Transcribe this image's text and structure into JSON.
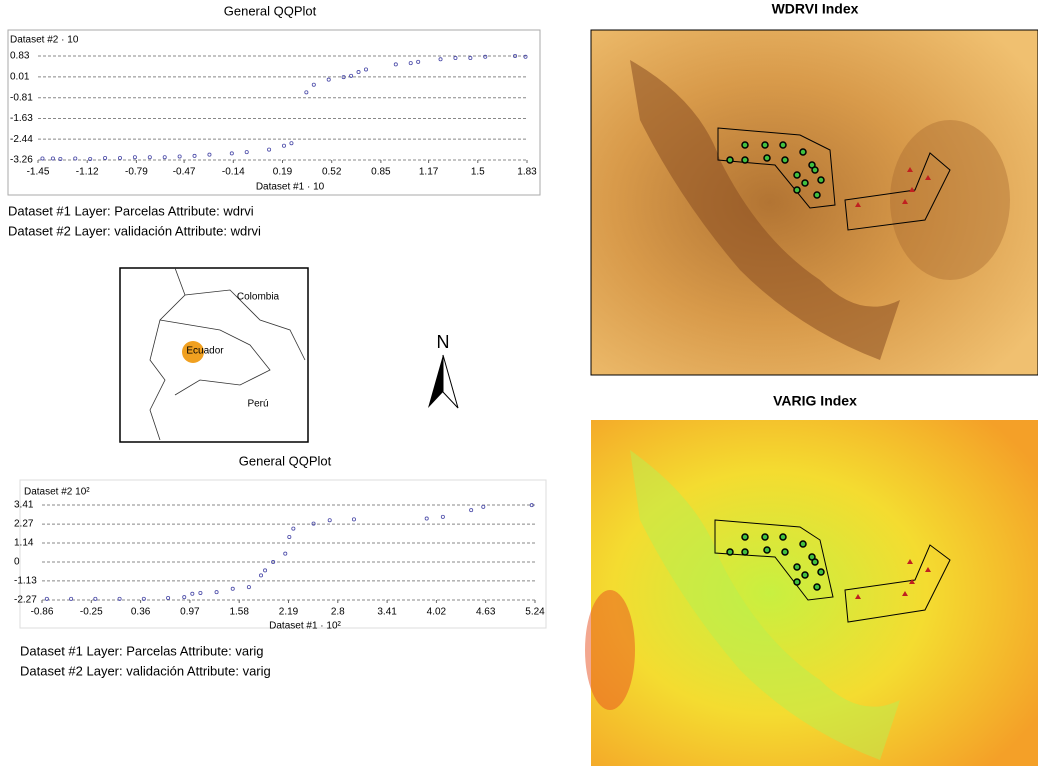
{
  "chart_data": [
    {
      "type": "scatter",
      "title": "General QQPlot",
      "xlabel": "Dataset #1 · 10",
      "ylabel": "Dataset #2 · 10",
      "xlim": [
        -1.45,
        1.83
      ],
      "ylim": [
        -3.26,
        0.83
      ],
      "xticks": [
        -1.45,
        -1.12,
        -0.79,
        -0.47,
        -0.14,
        0.19,
        0.52,
        0.85,
        1.17,
        1.5,
        1.83
      ],
      "yticks": [
        0.83,
        0.01,
        -0.81,
        -1.63,
        -2.44,
        -3.26
      ],
      "grid": true,
      "color": "#4a4aa8",
      "x": [
        -1.42,
        -1.35,
        -1.3,
        -1.2,
        -1.1,
        -1.0,
        -0.9,
        -0.8,
        -0.7,
        -0.6,
        -0.5,
        -0.4,
        -0.3,
        -0.15,
        -0.05,
        0.1,
        0.2,
        0.25,
        0.35,
        0.4,
        0.5,
        0.6,
        0.65,
        0.7,
        0.75,
        0.95,
        1.05,
        1.1,
        1.25,
        1.35,
        1.45,
        1.55,
        1.75,
        1.82
      ],
      "y": [
        -3.2,
        -3.2,
        -3.22,
        -3.2,
        -3.22,
        -3.18,
        -3.18,
        -3.15,
        -3.15,
        -3.15,
        -3.12,
        -3.1,
        -3.05,
        -3.0,
        -2.95,
        -2.85,
        -2.7,
        -2.6,
        -0.6,
        -0.3,
        -0.1,
        0.0,
        0.05,
        0.2,
        0.3,
        0.5,
        0.55,
        0.6,
        0.7,
        0.75,
        0.75,
        0.8,
        0.83,
        0.8
      ],
      "notes": [
        "Dataset #1 Layer: Parcelas Attribute: wdrvi",
        "Dataset #2 Layer: validación Attribute: wdrvi"
      ]
    },
    {
      "type": "scatter",
      "title": "General QQPlot",
      "xlabel": "Dataset #1 · 10²",
      "ylabel": "Dataset #2  10²",
      "xlim": [
        -0.86,
        5.24
      ],
      "ylim": [
        -2.27,
        3.41
      ],
      "xticks": [
        -0.86,
        -0.25,
        0.36,
        0.97,
        1.58,
        2.19,
        2.8,
        3.41,
        4.02,
        4.63,
        5.24
      ],
      "yticks": [
        3.41,
        2.27,
        1.14,
        0,
        -1.13,
        -2.27
      ],
      "grid": true,
      "color": "#4a4aa8",
      "x": [
        -0.8,
        -0.5,
        -0.2,
        0.1,
        0.4,
        0.7,
        0.9,
        1.0,
        1.1,
        1.3,
        1.5,
        1.7,
        1.85,
        1.9,
        2.0,
        2.15,
        2.2,
        2.25,
        2.5,
        2.7,
        3.0,
        3.9,
        4.1,
        4.45,
        4.6,
        5.2
      ],
      "y": [
        -2.2,
        -2.2,
        -2.2,
        -2.2,
        -2.2,
        -2.15,
        -2.1,
        -1.9,
        -1.85,
        -1.8,
        -1.6,
        -1.5,
        -0.8,
        -0.5,
        0.0,
        0.5,
        1.5,
        2.0,
        2.3,
        2.5,
        2.55,
        2.6,
        2.7,
        3.1,
        3.3,
        3.4
      ],
      "notes": [
        "Dataset #1 Layer: Parcelas Attribute: varig",
        "Dataset #2 Layer: validación Attribute: varig"
      ]
    }
  ],
  "map": {
    "labels": [
      "Colombia",
      "Ecuador",
      "Perú"
    ],
    "north": "N"
  },
  "images": [
    {
      "title": "WDRVI Index"
    },
    {
      "title": "VARIG Index"
    }
  ]
}
